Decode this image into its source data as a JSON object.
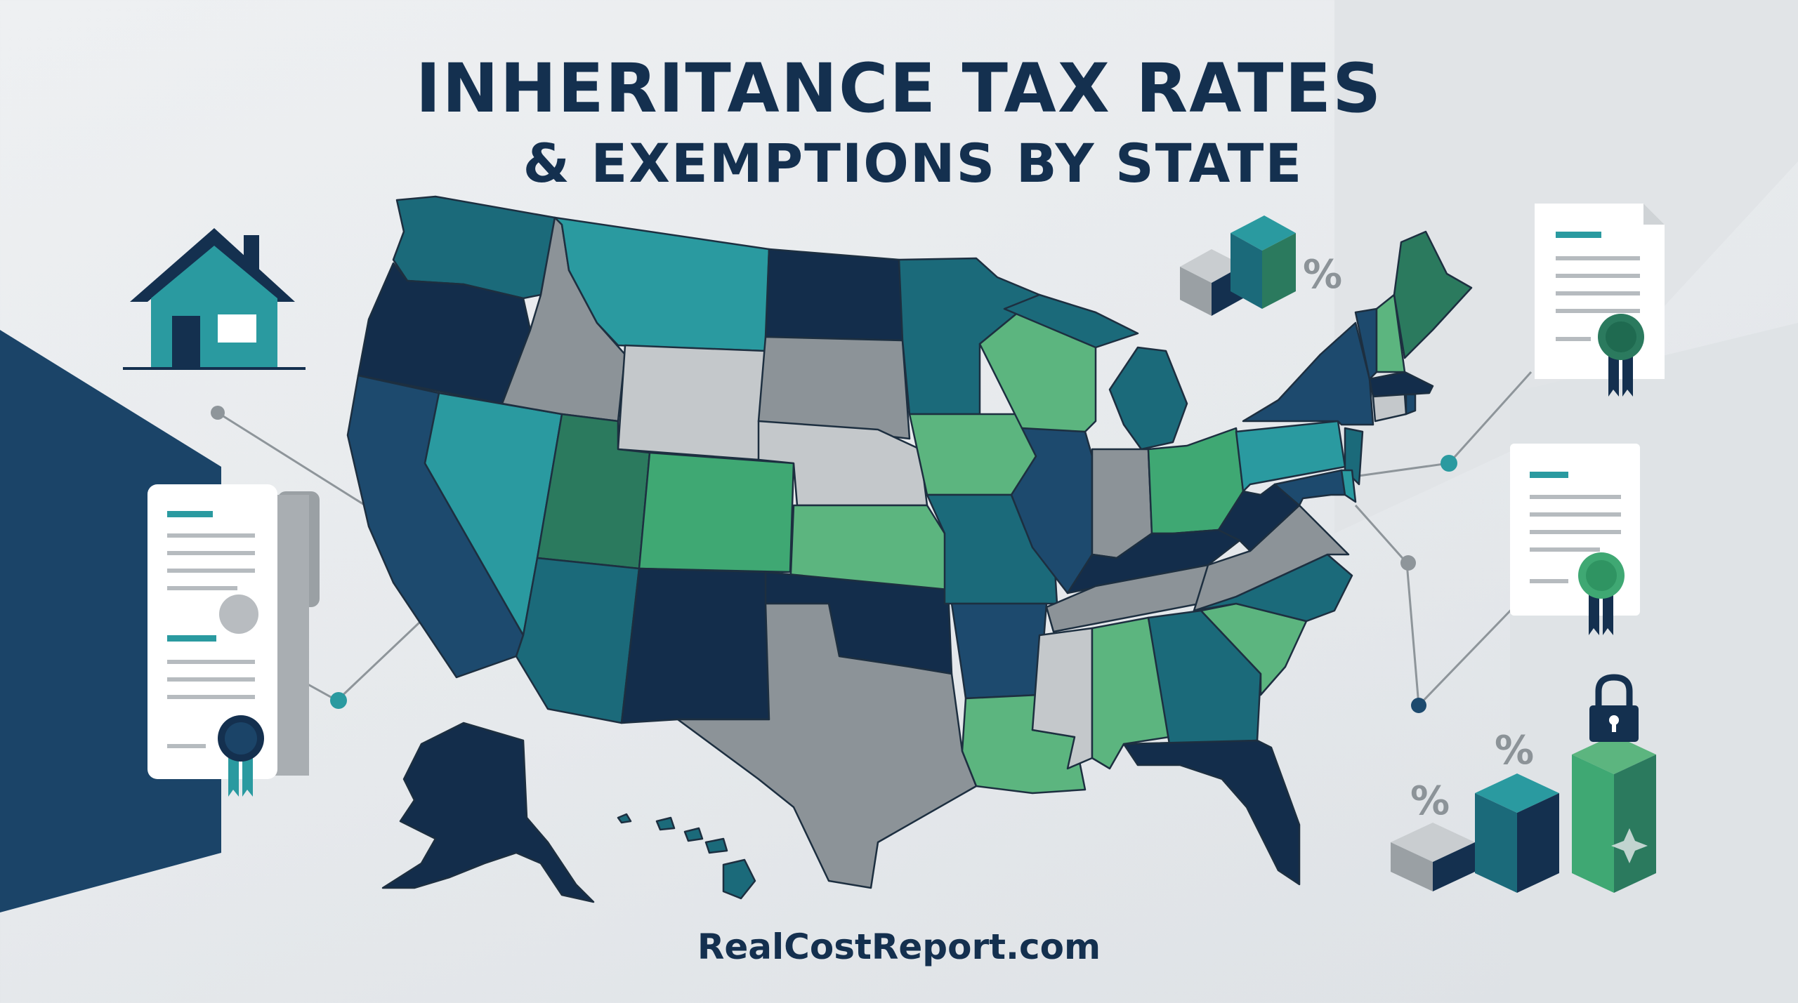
{
  "title": {
    "line1": "INHERITANCE TAX RATES",
    "line2": "& EXEMPTIONS BY STATE"
  },
  "footer": {
    "site": "RealCostReport.com"
  },
  "icons": {
    "house": "house-icon",
    "certificate": "certificate-icon",
    "ribbon": "award-ribbon-icon",
    "padlock": "padlock-icon",
    "bar_blocks": "3d-bar-blocks-icon",
    "percent_sign": "%"
  },
  "colors": {
    "title": "#14304f",
    "navy": "#132d4b",
    "dark_blue": "#1d4a6e",
    "teal": "#1b6a7a",
    "light_teal": "#2a9aa0",
    "green": "#2b7a5e",
    "light_green": "#5cb57f",
    "gray": "#8c9398",
    "light_gray": "#c4c8cb",
    "background": "#e9ecee"
  }
}
